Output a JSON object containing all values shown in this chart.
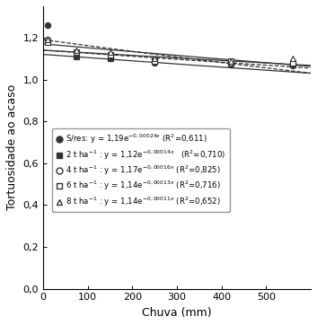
{
  "title": "",
  "xlabel": "Chuva (mm)",
  "ylabel": "Tortuosidade ao acaso",
  "xlim": [
    0,
    600
  ],
  "ylim": [
    0.0,
    1.35
  ],
  "yticks": [
    0.0,
    0.2,
    0.4,
    0.6,
    0.8,
    1.0,
    1.2
  ],
  "ytick_labels": [
    "0,0",
    "0,2",
    "0,4",
    "0,6",
    "0,8",
    "1,0",
    "1,2"
  ],
  "xticks": [
    0,
    100,
    200,
    300,
    400,
    500
  ],
  "series": [
    {
      "label": "S/res",
      "a": 1.19,
      "b": -0.00024,
      "marker": "o",
      "filled": true,
      "linestyle": "--",
      "data_x": [
        10,
        75,
        150,
        250,
        420,
        560
      ],
      "data_y": [
        1.26,
        1.11,
        1.1,
        1.08,
        1.07,
        1.065
      ]
    },
    {
      "label": "2 t ha",
      "a": 1.12,
      "b": -0.00014,
      "marker": "s",
      "filled": true,
      "linestyle": "-",
      "data_x": [
        10,
        75,
        150,
        250,
        420,
        560
      ],
      "data_y": [
        1.18,
        1.11,
        1.1,
        1.09,
        1.08,
        1.07
      ]
    },
    {
      "label": "4 t ha",
      "a": 1.17,
      "b": -0.00016,
      "marker": "o",
      "filled": false,
      "linestyle": "-",
      "data_x": [
        10,
        75,
        150,
        250,
        420,
        560
      ],
      "data_y": [
        1.19,
        1.13,
        1.12,
        1.09,
        1.08,
        1.08
      ]
    },
    {
      "label": "6 t ha",
      "a": 1.14,
      "b": -0.00013,
      "marker": "s",
      "filled": false,
      "linestyle": "--",
      "data_x": [
        10,
        75,
        150,
        250,
        420,
        560
      ],
      "data_y": [
        1.18,
        1.13,
        1.12,
        1.09,
        1.09,
        1.08
      ]
    },
    {
      "label": "8 t ha",
      "a": 1.14,
      "b": -0.00011,
      "marker": "^",
      "filled": false,
      "linestyle": "-",
      "data_x": [
        10,
        75,
        150,
        250,
        420,
        560
      ],
      "data_y": [
        1.19,
        1.14,
        1.13,
        1.1,
        1.09,
        1.1
      ]
    }
  ],
  "legend_equations": [
    "S/res: y = 1,19e$^{-0,00024x}$ (R$^{2}$=0,611)",
    "2 t ha$^{-1}$ : y = 1,12e$^{-0,00014x}$   (R$^{2}$=0,710)",
    "4 t ha$^{-1}$ : y = 1,17e$^{-0,00016x}$ (R$^{2}$=0,825)",
    "6 t ha$^{-1}$ : y = 1,14e$^{-0,00013x}$ (R$^{2}$=0,716)",
    "8 t ha$^{-1}$ : y = 1,14e$^{-0,00011x}$ (R$^{2}$=0,652)"
  ],
  "color": "#333333",
  "bg_color": "#ffffff"
}
